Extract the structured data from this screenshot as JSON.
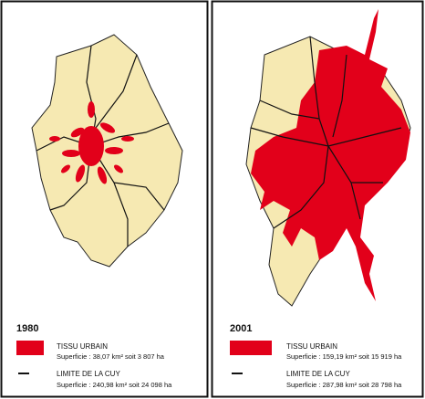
{
  "panels": [
    {
      "year": "1980",
      "legend": [
        {
          "label": "TISSU URBAIN",
          "detail": "Superficie : 38,07 km² soit 3 807 ha"
        },
        {
          "label": "LIMITE DE LA CUY",
          "detail": "Superficie : 240,98 km² soit 24 098 ha"
        }
      ]
    },
    {
      "year": "2001",
      "legend": [
        {
          "label": "TISSU URBAIN",
          "detail": "Superficie : 159,19 km² soit 15 919 ha"
        },
        {
          "label": "LIMITE DE LA CUY",
          "detail": "Superficie : 287,98 km² soit 28 798 ha"
        }
      ]
    }
  ]
}
